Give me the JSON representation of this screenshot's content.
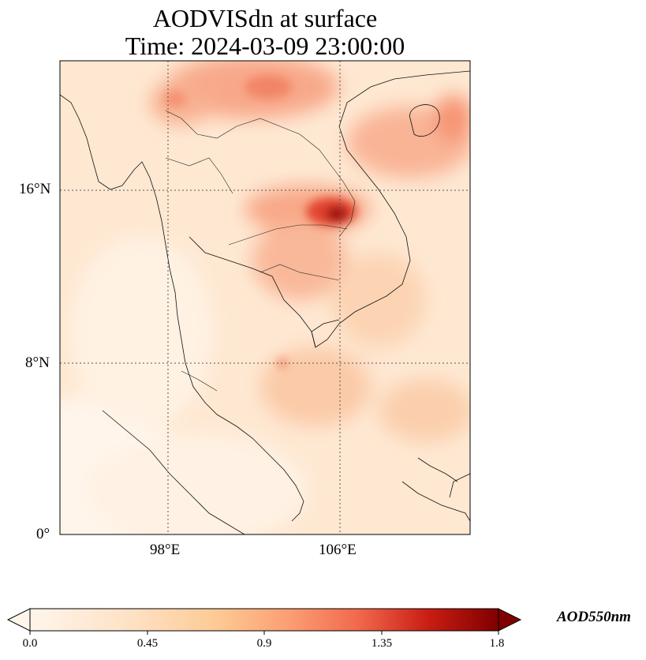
{
  "title": {
    "line1": "AODVISdn at surface",
    "line2": "Time: 2024-03-09 23:00:00"
  },
  "map": {
    "lat_labels": [
      "16°N",
      "8°N",
      "0°"
    ],
    "lon_labels": [
      "98°E",
      "106°E"
    ],
    "extent": {
      "lon_min": 93,
      "lon_max": 112,
      "lat_min": 0,
      "lat_max": 22
    },
    "gridline_lats": [
      16,
      8
    ],
    "gridline_lons": [
      98,
      106
    ]
  },
  "colorbar": {
    "label": "AOD550nm",
    "ticks": [
      "0.0",
      "0.45",
      "0.9",
      "1.35",
      "1.8"
    ],
    "vmin": 0.0,
    "vmax": 1.8,
    "colors": [
      "#fff5eb",
      "#fdd8b0",
      "#fc8d59",
      "#d7301f",
      "#7f0000"
    ]
  }
}
